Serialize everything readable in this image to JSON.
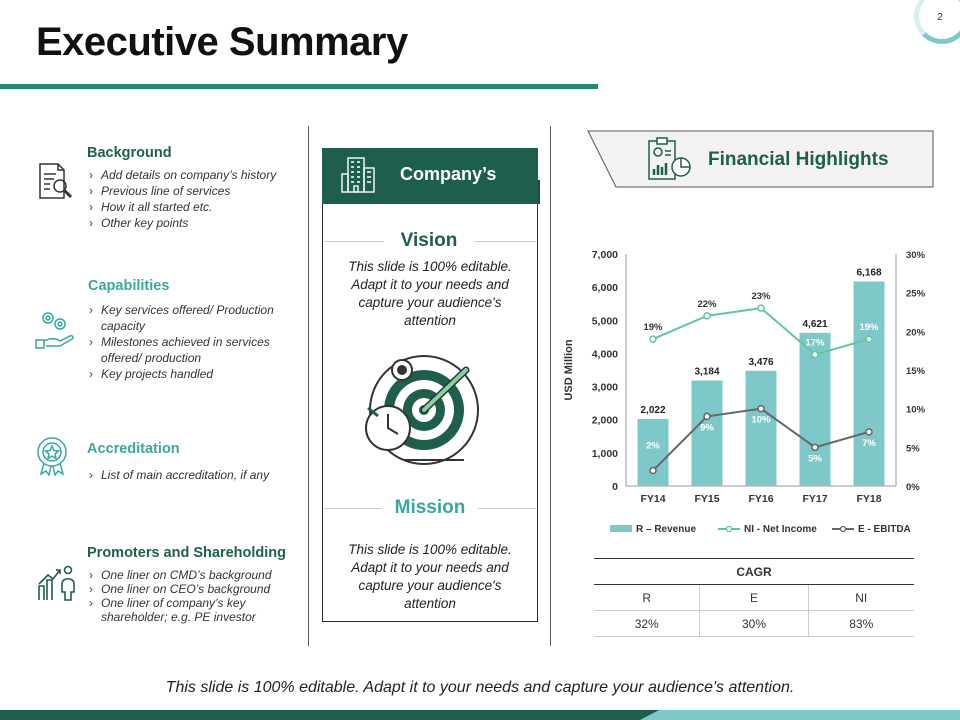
{
  "page": {
    "title": "Executive Summary",
    "number": "2"
  },
  "sections": {
    "background": {
      "title": "Background",
      "icon": "document-search-icon",
      "bullets": [
        "Add details on company’s history",
        "Previous line of services",
        "How it all started etc.",
        "Other key points"
      ]
    },
    "capabilities": {
      "title": "Capabilities",
      "icon": "gears-hand-icon",
      "bullets": [
        "Key services offered/ Production capacity",
        "Milestones achieved in services offered/ production",
        "Key projects handled"
      ]
    },
    "accreditation": {
      "title": "Accreditation",
      "icon": "award-badge-icon",
      "bullets": [
        "List of main accreditation,  if any"
      ]
    },
    "promoters": {
      "title": "Promoters and Shareholding",
      "icon": "growth-people-icon",
      "bullets": [
        "One liner on CMD’s  background",
        "One liner on CEO’s background",
        "One liner of company’s  key shareholder;  e.g. PE investor"
      ]
    }
  },
  "company": {
    "label": "Company’s",
    "icon": "building-icon",
    "vision": {
      "title": "Vision",
      "text": "This slide is 100% editable. Adapt it to your needs and capture your audience's attention"
    },
    "mission": {
      "title": "Mission",
      "text": "This slide is 100% editable. Adapt it to your needs and capture your audience's attention"
    },
    "center_icon": "target-arrow-icon"
  },
  "financial": {
    "title": "Financial Highlights",
    "icon": "report-chart-icon"
  },
  "chart_data": {
    "type": "bar",
    "categories": [
      "FY14",
      "FY15",
      "FY16",
      "FY17",
      "FY18"
    ],
    "ylabel": "USD Million",
    "ylim": [
      0,
      7000
    ],
    "y_ticks": [
      "0",
      "1,000",
      "2,000",
      "3,000",
      "4,000",
      "5,000",
      "6,000",
      "7,000"
    ],
    "y2lim": [
      0,
      30
    ],
    "y2_ticks": [
      "0%",
      "5%",
      "10%",
      "15%",
      "20%",
      "25%",
      "30%"
    ],
    "series": [
      {
        "name": "R – Revenue",
        "type": "bar",
        "values": [
          2022,
          3184,
          3476,
          4621,
          6168
        ],
        "labels": [
          "2,022",
          "3,184",
          "3,476",
          "4,621",
          "6,168"
        ],
        "color": "#7fc8c9"
      },
      {
        "name": "NI - Net Income",
        "type": "line",
        "axis": "right",
        "values": [
          19,
          22,
          23,
          17,
          19
        ],
        "labels": [
          "19%",
          "22%",
          "23%",
          "17%",
          "19%"
        ],
        "color": "#5fc79a"
      },
      {
        "name": "E - EBITDA",
        "type": "line",
        "axis": "right",
        "values": [
          2,
          9,
          10,
          5,
          7
        ],
        "labels": [
          "2%",
          "9%",
          "10%",
          "5%",
          "7%"
        ],
        "color": "#666666"
      }
    ],
    "legend_position": "bottom"
  },
  "cagr": {
    "title": "CAGR",
    "headers": [
      "R",
      "E",
      "NI"
    ],
    "values": [
      "32%",
      "30%",
      "83%"
    ]
  },
  "footer": {
    "text": "This slide is 100% editable. Adapt it to your needs and capture your audience's attention."
  },
  "colors": {
    "primary": "#1e5e4c",
    "accent": "#7fc8c9",
    "rule": "#1f8a6f"
  }
}
